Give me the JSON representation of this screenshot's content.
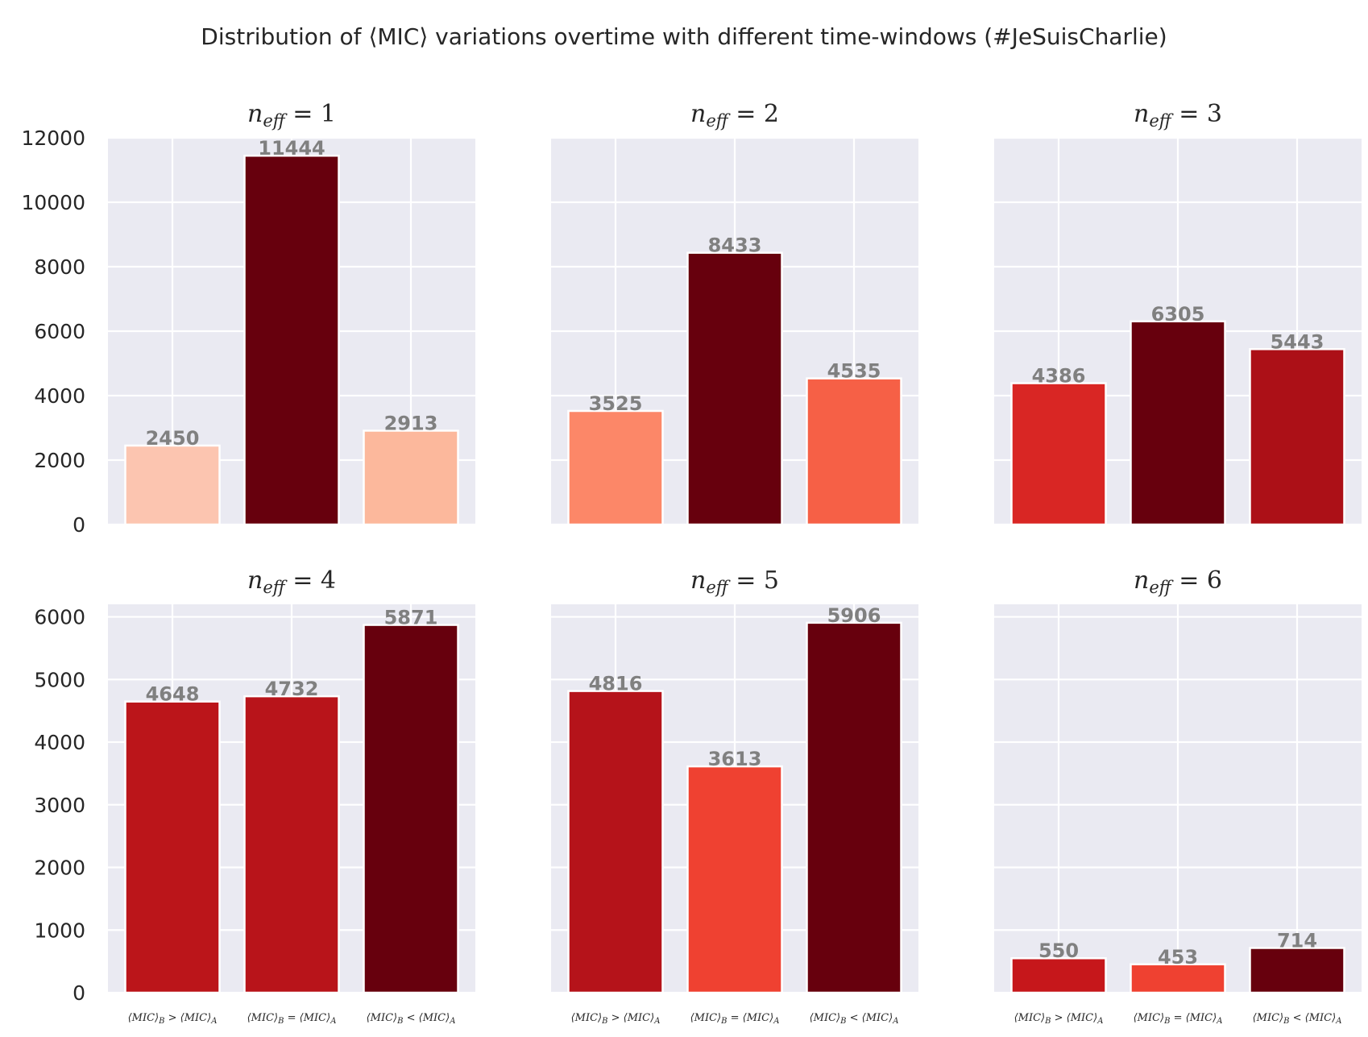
{
  "chart_data": {
    "type": "bar",
    "title": "Distribution of ⟨MIC⟩ variations overtime with different time-windows (#JeSuisCharlie)",
    "categories": [
      "⟨MIC⟩B > ⟨MIC⟩A",
      "⟨MIC⟩B = ⟨MIC⟩A",
      "⟨MIC⟩B < ⟨MIC⟩A"
    ],
    "panels": [
      {
        "title": "n_eff = 1",
        "values": [
          2450,
          11444,
          2913
        ],
        "colors": [
          "#fcc5b0",
          "#67000d",
          "#fcb89c"
        ]
      },
      {
        "title": "n_eff = 2",
        "values": [
          3525,
          8433,
          4535
        ],
        "colors": [
          "#fc8768",
          "#67000d",
          "#f66046"
        ]
      },
      {
        "title": "n_eff = 3",
        "values": [
          4386,
          6305,
          5443
        ],
        "colors": [
          "#d92624",
          "#67000d",
          "#ac1017"
        ]
      },
      {
        "title": "n_eff = 4",
        "values": [
          4648,
          4732,
          5871
        ],
        "colors": [
          "#bb151a",
          "#b8141a",
          "#67000d"
        ]
      },
      {
        "title": "n_eff = 5",
        "values": [
          4816,
          3613,
          5906
        ],
        "colors": [
          "#b5131a",
          "#ef4131",
          "#67000d"
        ]
      },
      {
        "title": "n_eff = 6",
        "values": [
          550,
          453,
          714
        ],
        "colors": [
          "#c6171b",
          "#ef4131",
          "#67000d"
        ]
      }
    ],
    "rows": [
      {
        "ylim": [
          0,
          12000
        ],
        "yticks": [
          "0",
          "2000",
          "4000",
          "6000",
          "8000",
          "10000",
          "12000"
        ]
      },
      {
        "ylim": [
          0,
          6200
        ],
        "yticks": [
          "0",
          "1000",
          "2000",
          "3000",
          "4000",
          "5000",
          "6000"
        ]
      }
    ],
    "grid": true,
    "background": "#eaeaf2",
    "label_color": "#808080"
  }
}
